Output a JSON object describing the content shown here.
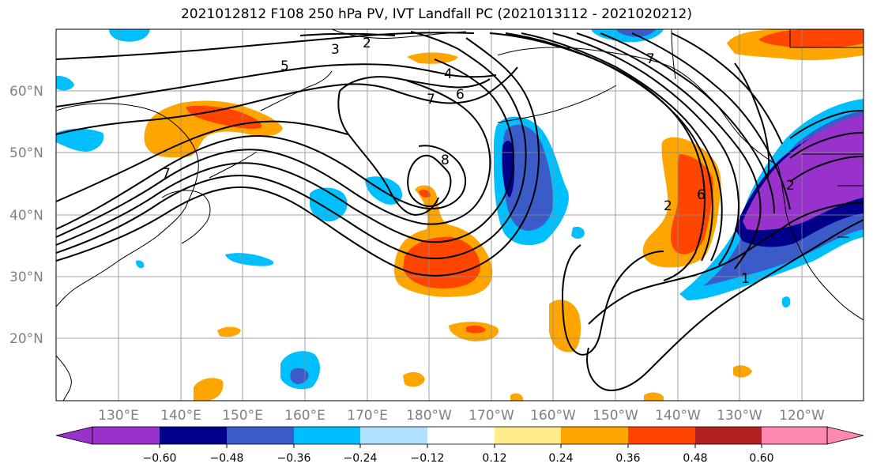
{
  "title": "2021012812 F108 250 hPa PV, IVT Landfall PC (2021013112 - 2021020212)",
  "lat_labels": [
    "60°N",
    "50°N",
    "40°N",
    "30°N",
    "20°N"
  ],
  "lon_labels": [
    "130°E",
    "140°E",
    "150°E",
    "160°E",
    "170°E",
    "180°W",
    "170°W",
    "160°W",
    "150°W",
    "140°W",
    "130°W",
    "120°W"
  ],
  "colorbar": {
    "ticks": [
      "−0.60",
      "−0.48",
      "−0.36",
      "−0.24",
      "−0.12",
      "0.12",
      "0.24",
      "0.36",
      "0.48",
      "0.60"
    ],
    "colors": [
      "#9932CC",
      "#00008B",
      "#3A5BC8",
      "#00BFFF",
      "#B0E2FF",
      "#FFFFFF",
      "#FFEC8B",
      "#FFA500",
      "#FF4500",
      "#B22222",
      "#FF88B0"
    ]
  },
  "contour_labels": [
    "2",
    "3",
    "4",
    "5",
    "6",
    "7",
    "8",
    "7",
    "2",
    "6",
    "1",
    "2",
    "7"
  ],
  "colors": {
    "gridline": "#8c8c8c",
    "contour": "#000000",
    "label_grey": "#808080"
  }
}
